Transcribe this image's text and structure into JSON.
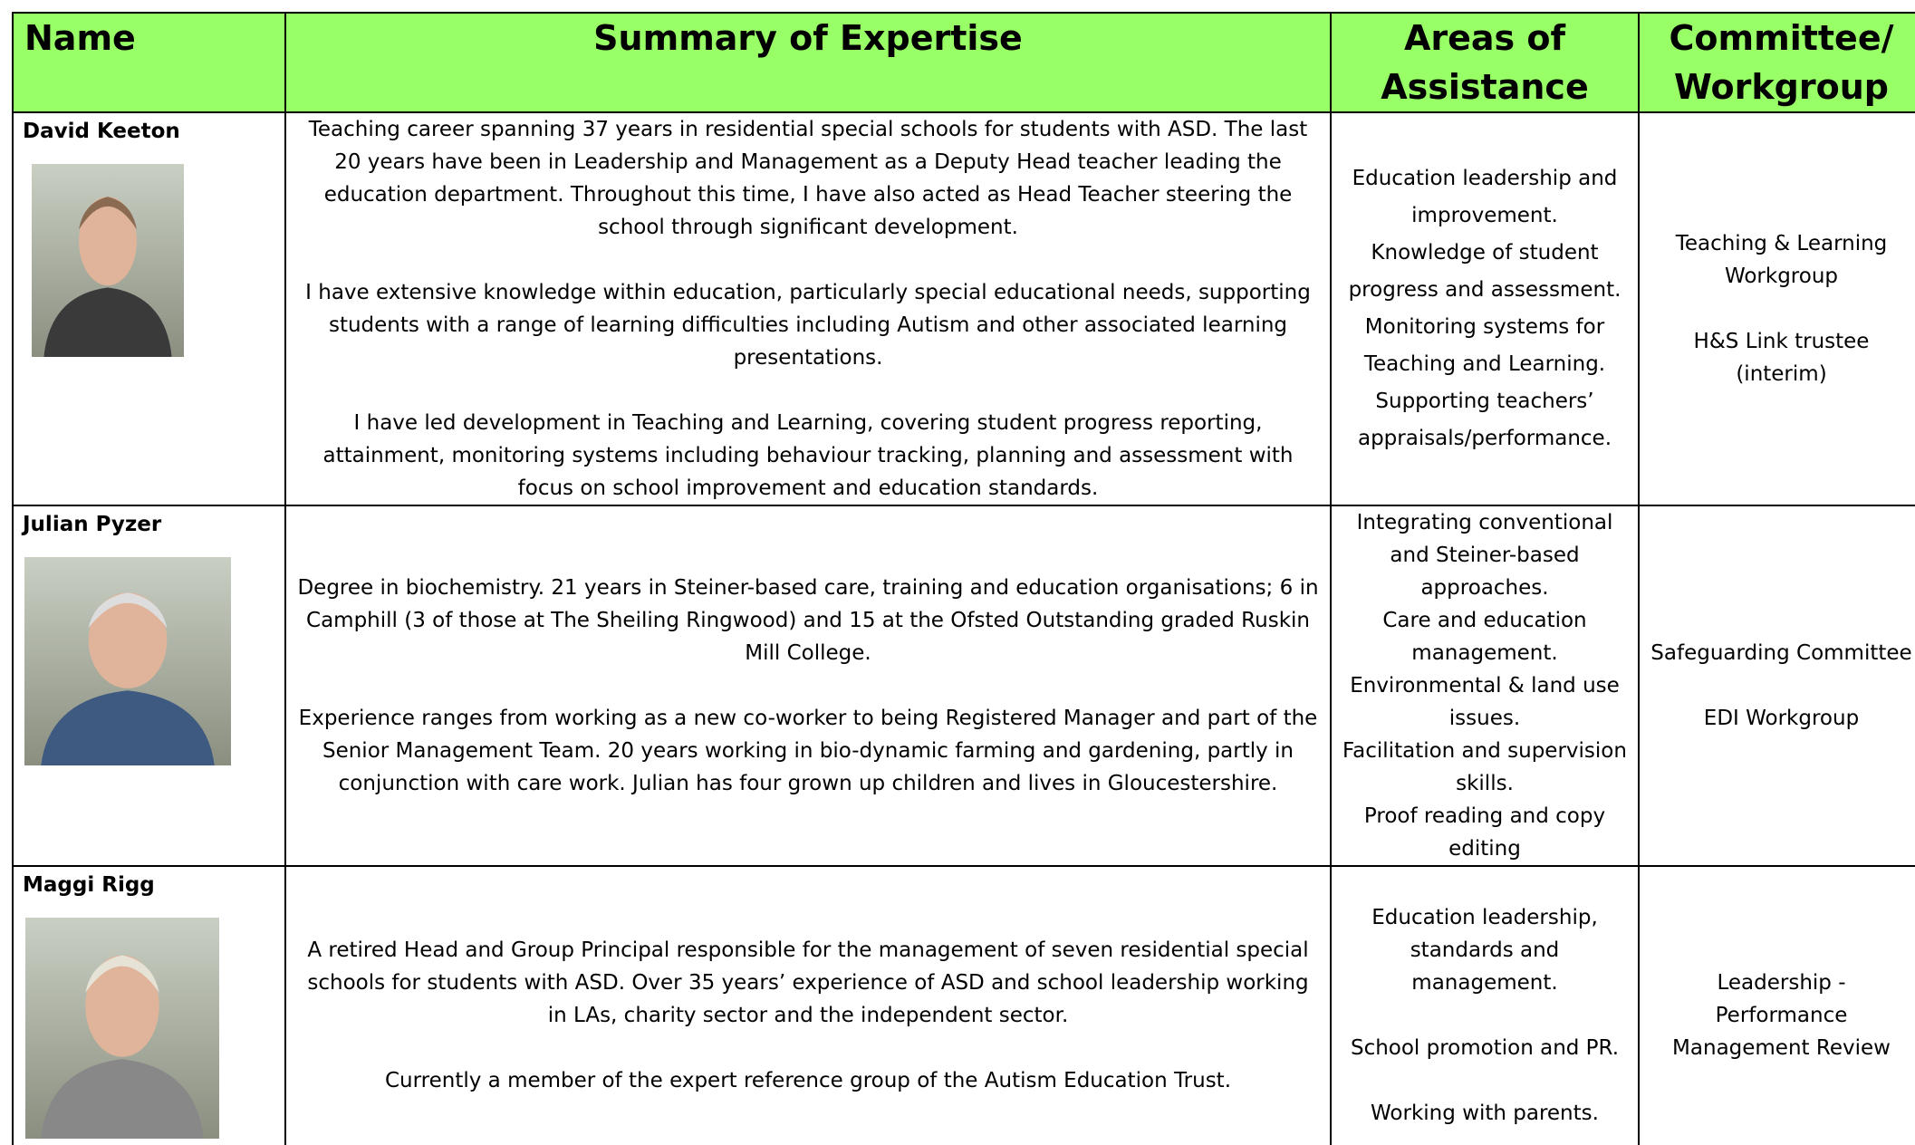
{
  "table": {
    "header": [
      "Name",
      "Summary of Expertise",
      "Areas of Assistance",
      "Committee/ Workgroup"
    ],
    "rows": [
      {
        "name": "David Keeton",
        "summary": [
          "Teaching career spanning 37 years in residential special schools for students with ASD. The last 20 years have been in Leadership and Management as a Deputy Head teacher leading the education department. Throughout this time, I have also acted as Head Teacher steering the school through significant development.",
          "I have extensive knowledge within education, particularly special educational needs, supporting students with a range of learning difficulties including Autism and other associated learning presentations.",
          "I have led development in Teaching and Learning, covering student progress reporting, attainment, monitoring systems including  behaviour tracking, planning and assessment with focus on school improvement and education standards."
        ],
        "areas": [
          "Education leadership and improvement.",
          "Knowledge of student progress and assessment.",
          "Monitoring systems for Teaching and Learning.",
          "Supporting teachers’ appraisals/performance."
        ],
        "committee": [
          "Teaching & Learning Workgroup",
          "H&S Link trustee (interim)"
        ]
      },
      {
        "name": "Julian Pyzer",
        "summary": [
          "Degree in biochemistry. 21 years in Steiner-based care, training and education organisations; 6 in Camphill (3 of those at The Sheiling Ringwood) and 15 at the Ofsted Outstanding graded Ruskin Mill College.",
          "Experience ranges from working as a new co-worker to being Registered Manager and part of the Senior Management Team. 20 years working in bio-dynamic farming and gardening, partly in conjunction with care work. Julian has four grown up children and lives in Gloucestershire."
        ],
        "areas": [
          "Integrating conventional and Steiner-based approaches.",
          "Care and education management.",
          "Environmental & land use issues.",
          "Facilitation and supervision skills.",
          "Proof reading and copy editing"
        ],
        "committee": [
          "Safeguarding Committee",
          "EDI Workgroup"
        ]
      },
      {
        "name": "Maggi Rigg",
        "summary": [
          "A retired Head and Group Principal responsible for the management of seven residential special schools for students with ASD. Over 35 years’ experience of ASD and school leadership working in LAs, charity sector and the independent sector.",
          "Currently a member of the expert reference group of the Autism Education Trust."
        ],
        "areas": [
          "Education leadership, standards and management.",
          "School promotion and PR.",
          "Working with parents."
        ],
        "committee": [
          "Leadership - Performance Management Review"
        ]
      }
    ]
  }
}
